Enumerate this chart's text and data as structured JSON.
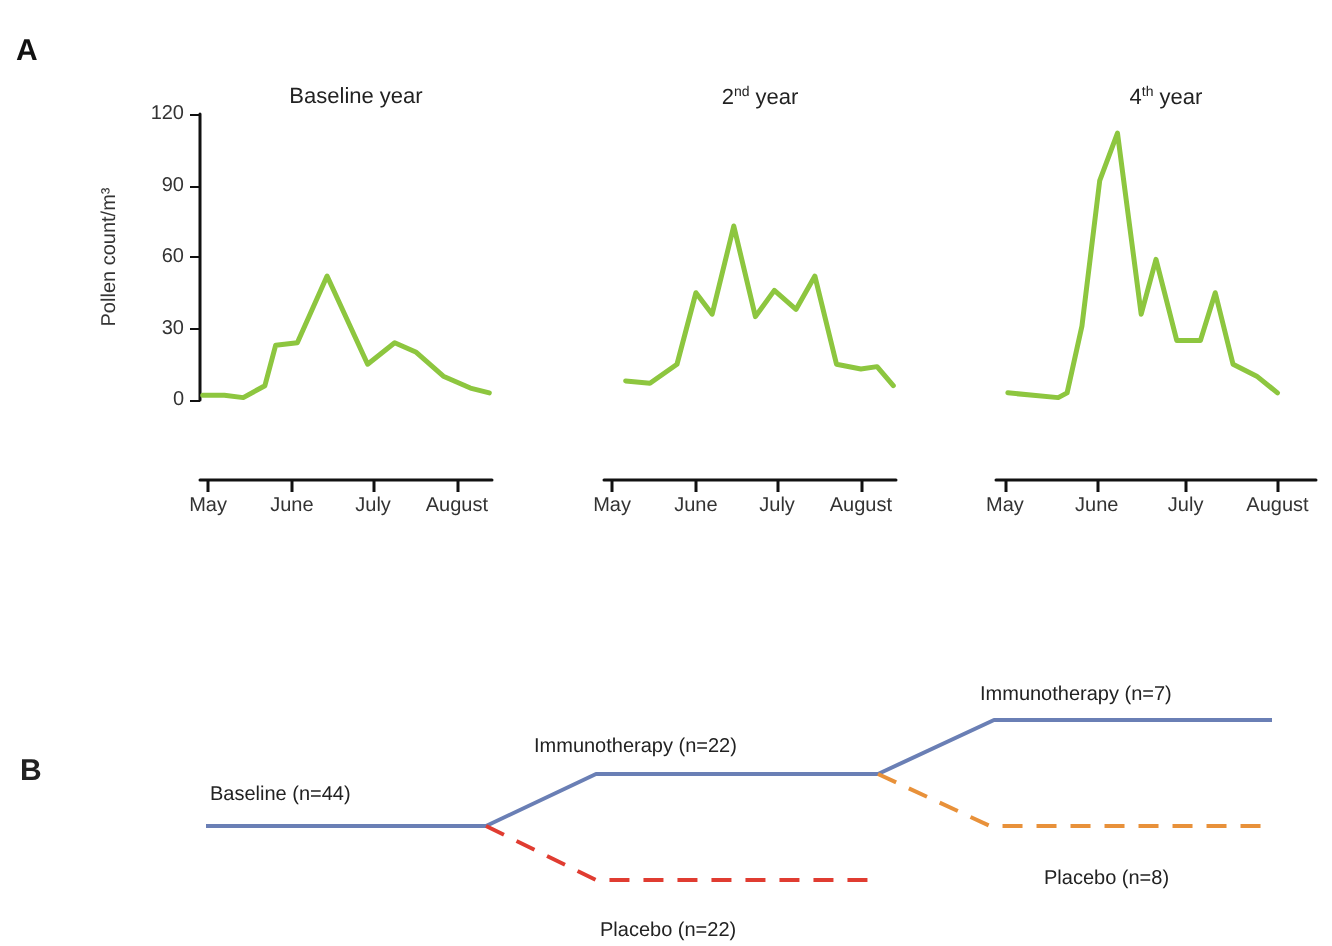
{
  "chart_data": [
    {
      "type": "line",
      "title": "Baseline year",
      "ylabel": "Pollen count/m³",
      "annotations": [
        "A"
      ],
      "xlim": [
        "--04-28",
        "--08-14"
      ],
      "xticks": [
        {
          "value": "--05-01",
          "label": "May"
        },
        {
          "value": "--06-01",
          "label": "June"
        },
        {
          "value": "--07-01",
          "label": "July"
        },
        {
          "value": "--08-01",
          "label": "August"
        }
      ],
      "ylim": [
        0,
        120
      ],
      "yticks": [
        0,
        30,
        60,
        90,
        120
      ],
      "grid": false,
      "marker": "none",
      "line_style": "solid",
      "series": [
        {
          "color": "#8dc63f",
          "x": [
            "--04-29",
            "--05-07",
            "--05-14",
            "--05-22",
            "--05-26",
            "--06-03",
            "--06-14",
            "--06-29",
            "--07-09",
            "--07-17",
            "--07-27",
            "--08-06",
            "--08-13"
          ],
          "values": [
            2,
            2,
            1,
            6,
            23,
            24,
            52,
            15,
            24,
            20,
            10,
            5,
            3
          ]
        }
      ]
    },
    {
      "type": "line",
      "title": "2$^{nd}$ year",
      "tick_labels": "x",
      "xlim": [
        "--04-28",
        "--08-14"
      ],
      "xticks": [
        {
          "value": "--05-01",
          "label": "May"
        },
        {
          "value": "--06-01",
          "label": "June"
        },
        {
          "value": "--07-01",
          "label": "July"
        },
        {
          "value": "--08-01",
          "label": "August"
        }
      ],
      "ylim": [
        0,
        120
      ],
      "grid": false,
      "marker": "none",
      "line_style": "solid",
      "series": [
        {
          "color": "#8dc63f",
          "x": [
            "--05-06",
            "--05-15",
            "--05-25",
            "--06-01",
            "--06-07",
            "--06-15",
            "--06-23",
            "--06-30",
            "--07-08",
            "--07-15",
            "--07-23",
            "--08-01",
            "--08-07",
            "--08-13"
          ],
          "values": [
            8,
            7,
            15,
            45,
            36,
            73,
            35,
            46,
            38,
            52,
            15,
            13,
            14,
            6
          ]
        }
      ]
    },
    {
      "type": "line",
      "title": "4$^{th}$ year",
      "tick_labels": "x",
      "xlim": [
        "--04-28",
        "--08-14"
      ],
      "xticks": [
        {
          "value": "--05-01",
          "label": "May"
        },
        {
          "value": "--06-01",
          "label": "June"
        },
        {
          "value": "--07-01",
          "label": "July"
        },
        {
          "value": "--08-01",
          "label": "August"
        }
      ],
      "ylim": [
        0,
        120
      ],
      "grid": false,
      "marker": "none",
      "line_style": "solid",
      "series": [
        {
          "color": "#8dc63f",
          "x": [
            "--05-02",
            "--05-19",
            "--05-22",
            "--05-27",
            "--06-02",
            "--06-08",
            "--06-16",
            "--06-21",
            "--06-28",
            "--07-06",
            "--07-11",
            "--07-17",
            "--07-25",
            "--08-01"
          ],
          "values": [
            3,
            1,
            3,
            31,
            92,
            112,
            36,
            59,
            25,
            25,
            45,
            15,
            10,
            3
          ]
        }
      ]
    },
    {
      "type": "other",
      "annotations": [
        "B",
        "Baseline (n=44)",
        "Immunotherapy (n=22)",
        "Placebo (n=22)",
        "Immunotherapy (n=7)",
        "Placebo (n=8)"
      ]
    }
  ]
}
